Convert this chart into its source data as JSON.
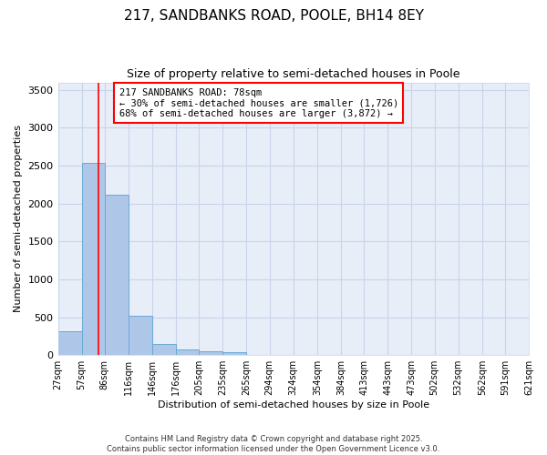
{
  "title_line1": "217, SANDBANKS ROAD, POOLE, BH14 8EY",
  "title_line2": "Size of property relative to semi-detached houses in Poole",
  "xlabel": "Distribution of semi-detached houses by size in Poole",
  "ylabel": "Number of semi-detached properties",
  "bin_labels": [
    "27sqm",
    "57sqm",
    "86sqm",
    "116sqm",
    "146sqm",
    "176sqm",
    "205sqm",
    "235sqm",
    "265sqm",
    "294sqm",
    "324sqm",
    "354sqm",
    "384sqm",
    "413sqm",
    "443sqm",
    "473sqm",
    "502sqm",
    "532sqm",
    "562sqm",
    "591sqm",
    "621sqm"
  ],
  "bin_edges": [
    27,
    57,
    86,
    116,
    146,
    176,
    205,
    235,
    265,
    294,
    324,
    354,
    384,
    413,
    443,
    473,
    502,
    532,
    562,
    591,
    621
  ],
  "bar_heights": [
    320,
    2540,
    2120,
    520,
    145,
    75,
    45,
    35,
    0,
    0,
    0,
    0,
    0,
    0,
    0,
    0,
    0,
    0,
    0,
    0
  ],
  "bar_color": "#aec6e8",
  "bar_edge_color": "#6aaad4",
  "bg_color": "#e8eef8",
  "grid_color": "#c8d4e8",
  "red_line_x": 78,
  "annotation_title": "217 SANDBANKS ROAD: 78sqm",
  "annotation_line1": "← 30% of semi-detached houses are smaller (1,726)",
  "annotation_line2": "68% of semi-detached houses are larger (3,872) →",
  "ylim": [
    0,
    3600
  ],
  "yticks": [
    0,
    500,
    1000,
    1500,
    2000,
    2500,
    3000,
    3500
  ],
  "footnote_line1": "Contains HM Land Registry data © Crown copyright and database right 2025.",
  "footnote_line2": "Contains public sector information licensed under the Open Government Licence v3.0."
}
